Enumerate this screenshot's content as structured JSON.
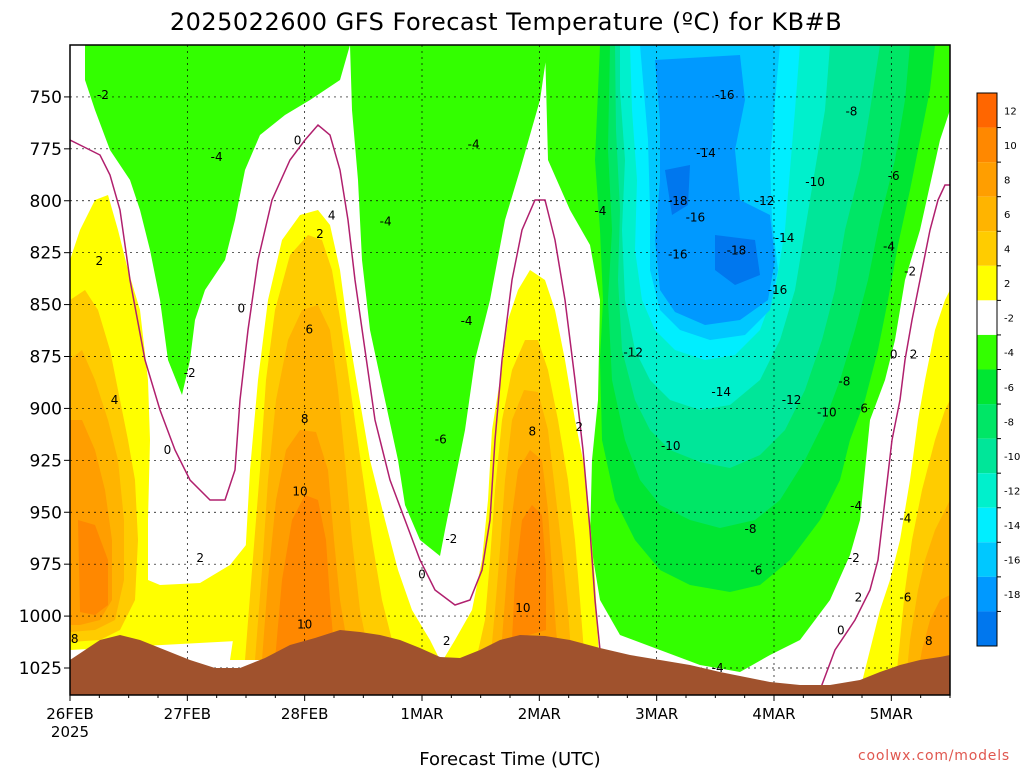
{
  "chart_data": {
    "type": "heatmap",
    "title": "2025022600 GFS Forecast Temperature (ºC) for KB#B",
    "xlabel": "Forecast Time (UTC)",
    "ylabel": "",
    "x_ticks": [
      "26FEB",
      "27FEB",
      "28FEB",
      "1MAR",
      "2MAR",
      "3MAR",
      "4MAR",
      "5MAR"
    ],
    "x_year": "2025",
    "x_range_days": [
      0,
      7.5
    ],
    "y_ticks": [
      750,
      775,
      800,
      825,
      850,
      875,
      900,
      925,
      950,
      975,
      1000,
      1025
    ],
    "y_range_hpa": [
      725,
      1038
    ],
    "grid": true,
    "colorbar": {
      "placement": "right",
      "levels": [
        {
          "label": "12",
          "color": "#ff6600"
        },
        {
          "label": "10",
          "color": "#ff8800"
        },
        {
          "label": "8",
          "color": "#ff9e00"
        },
        {
          "label": "6",
          "color": "#ffb400"
        },
        {
          "label": "4",
          "color": "#ffcc00"
        },
        {
          "label": "2",
          "color": "#ffff00"
        },
        {
          "label": "-2",
          "color": "#ffffff"
        },
        {
          "label": "-4",
          "color": "#33ff00"
        },
        {
          "label": "-6",
          "color": "#00e633"
        },
        {
          "label": "-8",
          "color": "#00e666"
        },
        {
          "label": "-10",
          "color": "#00e699"
        },
        {
          "label": "-12",
          "color": "#00f0cc"
        },
        {
          "label": "-14",
          "color": "#00eeff"
        },
        {
          "label": "-16",
          "color": "#00c8ff"
        },
        {
          "label": "-18",
          "color": "#0099ff"
        },
        {
          "label": "",
          "color": "#0077ee"
        }
      ]
    },
    "contour_labels": [
      {
        "text": "-2",
        "d": 0.28,
        "p": 749
      },
      {
        "text": "-4",
        "d": 1.25,
        "p": 779
      },
      {
        "text": "0",
        "d": 1.94,
        "p": 771
      },
      {
        "text": "4",
        "d": 2.23,
        "p": 807
      },
      {
        "text": "2",
        "d": 2.13,
        "p": 816
      },
      {
        "text": "-4",
        "d": 2.69,
        "p": 810
      },
      {
        "text": "-4",
        "d": 3.44,
        "p": 773
      },
      {
        "text": "2",
        "d": 0.25,
        "p": 829
      },
      {
        "text": "0",
        "d": 1.46,
        "p": 852
      },
      {
        "text": "6",
        "d": 2.04,
        "p": 862
      },
      {
        "text": "-2",
        "d": 1.02,
        "p": 883
      },
      {
        "text": "4",
        "d": 0.38,
        "p": 896
      },
      {
        "text": "8",
        "d": 2.0,
        "p": 905
      },
      {
        "text": "-4",
        "d": 3.38,
        "p": 858
      },
      {
        "text": "-6",
        "d": 3.16,
        "p": 915
      },
      {
        "text": "0",
        "d": 0.83,
        "p": 920
      },
      {
        "text": "10",
        "d": 1.96,
        "p": 940
      },
      {
        "text": "2",
        "d": 1.11,
        "p": 972
      },
      {
        "text": "-2",
        "d": 3.25,
        "p": 963
      },
      {
        "text": "0",
        "d": 3.0,
        "p": 980
      },
      {
        "text": "8",
        "d": 0.04,
        "p": 1011
      },
      {
        "text": "10",
        "d": 2.0,
        "p": 1004
      },
      {
        "text": "2",
        "d": 3.21,
        "p": 1012
      },
      {
        "text": "8",
        "d": 3.94,
        "p": 911
      },
      {
        "text": "2",
        "d": 4.34,
        "p": 909
      },
      {
        "text": "10",
        "d": 3.86,
        "p": 996
      },
      {
        "text": "-4",
        "d": 4.52,
        "p": 805
      },
      {
        "text": "-16",
        "d": 5.58,
        "p": 749
      },
      {
        "text": "-14",
        "d": 5.42,
        "p": 777
      },
      {
        "text": "-18",
        "d": 5.18,
        "p": 800
      },
      {
        "text": "-16",
        "d": 5.33,
        "p": 808
      },
      {
        "text": "-16",
        "d": 5.18,
        "p": 826
      },
      {
        "text": "-18",
        "d": 5.68,
        "p": 824
      },
      {
        "text": "-14",
        "d": 6.09,
        "p": 818
      },
      {
        "text": "-16",
        "d": 6.03,
        "p": 843
      },
      {
        "text": "-12",
        "d": 5.92,
        "p": 800
      },
      {
        "text": "-10",
        "d": 6.35,
        "p": 791
      },
      {
        "text": "-8",
        "d": 6.66,
        "p": 757
      },
      {
        "text": "-6",
        "d": 7.02,
        "p": 788
      },
      {
        "text": "-4",
        "d": 6.98,
        "p": 822
      },
      {
        "text": "-2",
        "d": 7.16,
        "p": 834
      },
      {
        "text": "-12",
        "d": 4.8,
        "p": 873
      },
      {
        "text": "-14",
        "d": 5.55,
        "p": 892
      },
      {
        "text": "-12",
        "d": 6.15,
        "p": 896
      },
      {
        "text": "-8",
        "d": 6.6,
        "p": 887
      },
      {
        "text": "-6",
        "d": 6.75,
        "p": 900
      },
      {
        "text": "-10",
        "d": 6.45,
        "p": 902
      },
      {
        "text": "-10",
        "d": 5.12,
        "p": 918
      },
      {
        "text": "-8",
        "d": 5.8,
        "p": 958
      },
      {
        "text": "-6",
        "d": 5.85,
        "p": 978
      },
      {
        "text": "-4",
        "d": 5.52,
        "p": 1025
      },
      {
        "text": "-4",
        "d": 6.7,
        "p": 947
      },
      {
        "text": "-4",
        "d": 7.12,
        "p": 953
      },
      {
        "text": "-2",
        "d": 6.68,
        "p": 972
      },
      {
        "text": "0",
        "d": 7.02,
        "p": 874
      },
      {
        "text": "2",
        "d": 7.19,
        "p": 874
      },
      {
        "text": "2",
        "d": 6.72,
        "p": 991
      },
      {
        "text": "0",
        "d": 6.57,
        "p": 1007
      },
      {
        "text": "-6",
        "d": 7.12,
        "p": 991
      },
      {
        "text": "8",
        "d": 7.32,
        "p": 1012
      }
    ]
  },
  "credit": "coolwx.com/models",
  "colors": {
    "terrain": "#a0522d",
    "freezing_line": "#b0206e",
    "grid": "#000000"
  }
}
